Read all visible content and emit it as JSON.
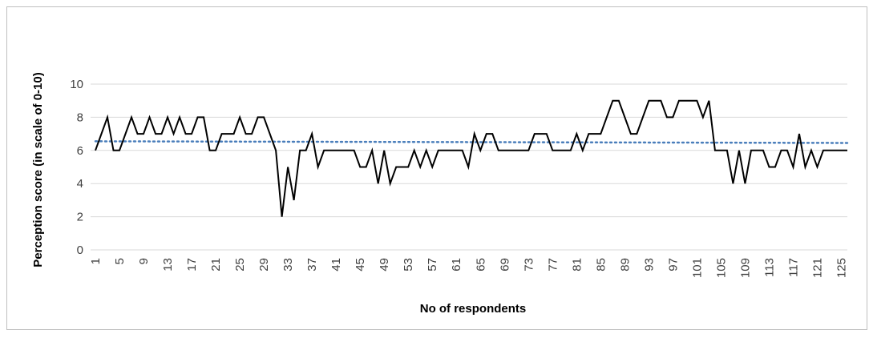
{
  "chart_data": {
    "type": "line",
    "title": "",
    "xlabel": "No of respondents",
    "ylabel": "Perception score (in scale of 0-10)",
    "ylim": [
      0,
      10
    ],
    "yticks": [
      0,
      2,
      4,
      6,
      8,
      10
    ],
    "x_tick_labels": [
      "1",
      "5",
      "9",
      "13",
      "17",
      "21",
      "25",
      "29",
      "33",
      "37",
      "41",
      "45",
      "49",
      "53",
      "57",
      "61",
      "65",
      "69",
      "73",
      "77",
      "81",
      "85",
      "89",
      "93",
      "97",
      "101",
      "105",
      "109",
      "113",
      "117",
      "121",
      "125"
    ],
    "grid": true,
    "series": [
      {
        "values": [
          6,
          7,
          8,
          6,
          6,
          7,
          8,
          7,
          7,
          8,
          7,
          7,
          8,
          7,
          8,
          7,
          7,
          8,
          8,
          6,
          6,
          7,
          7,
          7,
          8,
          7,
          7,
          8,
          8,
          7,
          6,
          2,
          5,
          3,
          6,
          6,
          7,
          5,
          6,
          6,
          6,
          6,
          6,
          6,
          5,
          5,
          6,
          4,
          6,
          4,
          5,
          5,
          5,
          6,
          5,
          6,
          5,
          6,
          6,
          6,
          6,
          6,
          5,
          7,
          6,
          7,
          7,
          6,
          6,
          6,
          6,
          6,
          6,
          7,
          7,
          7,
          6,
          6,
          6,
          6,
          7,
          6,
          7,
          7,
          7,
          8,
          9,
          9,
          8,
          7,
          7,
          8,
          9,
          9,
          9,
          8,
          8,
          9,
          9,
          9,
          9,
          8,
          9,
          6,
          6,
          6,
          4,
          6,
          4,
          6,
          6,
          6,
          5,
          5,
          6,
          6,
          5,
          7,
          5,
          6,
          5,
          6,
          6,
          6,
          6,
          6
        ],
        "color": "#000000"
      },
      {
        "type": "linear-trendline",
        "values_at_ends": [
          6.55,
          6.45
        ],
        "color": "#4a7ebb",
        "style": "dotted"
      }
    ]
  }
}
